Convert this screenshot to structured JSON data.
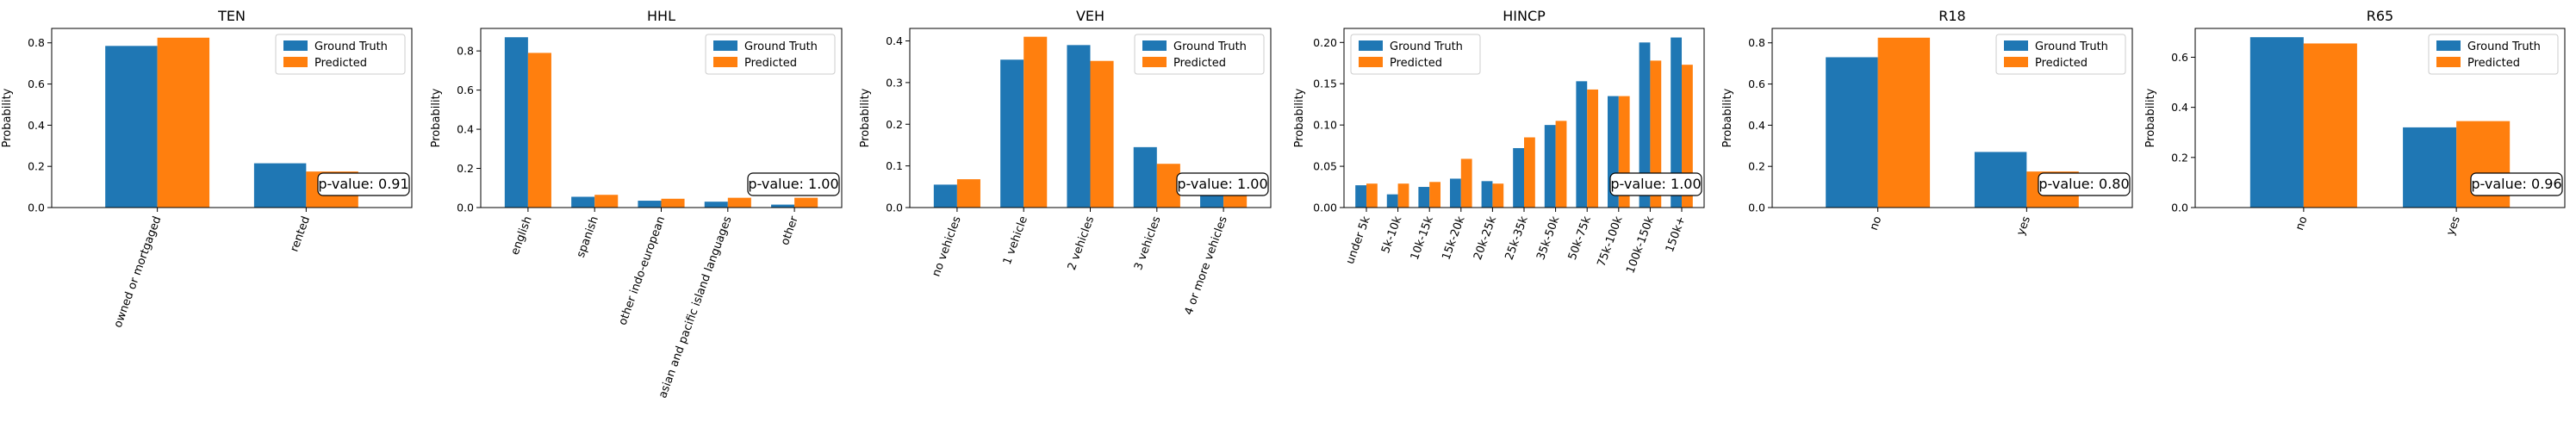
{
  "legend_labels": [
    "Ground Truth",
    "Predicted"
  ],
  "colors": {
    "ground_truth": "#1f77b4",
    "predicted": "#ff7f0e"
  },
  "chart_data": [
    {
      "type": "bar",
      "title": "TEN",
      "ylabel": "Probability",
      "categories": [
        "owned or mortgaged",
        "rented"
      ],
      "series": [
        {
          "name": "Ground Truth",
          "values": [
            0.785,
            0.215
          ]
        },
        {
          "name": "Predicted",
          "values": [
            0.825,
            0.175
          ]
        }
      ],
      "ylim": [
        0,
        0.87
      ],
      "yticks": [
        0.0,
        0.2,
        0.4,
        0.6,
        0.8
      ],
      "ytick_labels": [
        "0.0",
        "0.2",
        "0.4",
        "0.6",
        "0.8"
      ],
      "legend": "top-right",
      "annotation": "p-value: 0.91"
    },
    {
      "type": "bar",
      "title": "HHL",
      "ylabel": "Probability",
      "categories": [
        "english",
        "spanish",
        "other indo-european",
        "asian and pacific island languages",
        "other"
      ],
      "series": [
        {
          "name": "Ground Truth",
          "values": [
            0.87,
            0.055,
            0.035,
            0.03,
            0.015
          ]
        },
        {
          "name": "Predicted",
          "values": [
            0.79,
            0.065,
            0.045,
            0.05,
            0.05
          ]
        }
      ],
      "ylim": [
        0,
        0.915
      ],
      "yticks": [
        0.0,
        0.2,
        0.4,
        0.6,
        0.8
      ],
      "ytick_labels": [
        "0.0",
        "0.2",
        "0.4",
        "0.6",
        "0.8"
      ],
      "legend": "top-right",
      "annotation": "p-value: 1.00"
    },
    {
      "type": "bar",
      "title": "VEH",
      "ylabel": "Probability",
      "categories": [
        "no vehicles",
        "1 vehicle",
        "2 vehicles",
        "3 vehicles",
        "4 or more vehicles"
      ],
      "series": [
        {
          "name": "Ground Truth",
          "values": [
            0.055,
            0.355,
            0.39,
            0.145,
            0.06
          ]
        },
        {
          "name": "Predicted",
          "values": [
            0.068,
            0.41,
            0.352,
            0.105,
            0.06
          ]
        }
      ],
      "ylim": [
        0,
        0.43
      ],
      "yticks": [
        0.0,
        0.1,
        0.2,
        0.3,
        0.4
      ],
      "ytick_labels": [
        "0.0",
        "0.1",
        "0.2",
        "0.3",
        "0.4"
      ],
      "legend": "top-right",
      "annotation": "p-value: 1.00"
    },
    {
      "type": "bar",
      "title": "HINCP",
      "ylabel": "Probability",
      "categories": [
        "under 5k",
        "5k-10k",
        "10k-15k",
        "15k-20k",
        "20k-25k",
        "25k-35k",
        "35k-50k",
        "50k-75k",
        "75k-100k",
        "100k-150k",
        "150k+"
      ],
      "series": [
        {
          "name": "Ground Truth",
          "values": [
            0.027,
            0.016,
            0.025,
            0.035,
            0.032,
            0.072,
            0.1,
            0.153,
            0.135,
            0.2,
            0.206
          ]
        },
        {
          "name": "Predicted",
          "values": [
            0.029,
            0.029,
            0.031,
            0.059,
            0.029,
            0.085,
            0.105,
            0.143,
            0.135,
            0.178,
            0.173
          ]
        }
      ],
      "ylim": [
        0,
        0.217
      ],
      "yticks": [
        0.0,
        0.05,
        0.1,
        0.15,
        0.2
      ],
      "ytick_labels": [
        "0.00",
        "0.05",
        "0.10",
        "0.15",
        "0.20"
      ],
      "legend": "top-left",
      "annotation": "p-value: 1.00"
    },
    {
      "type": "bar",
      "title": "R18",
      "ylabel": "Probability",
      "categories": [
        "no",
        "yes"
      ],
      "series": [
        {
          "name": "Ground Truth",
          "values": [
            0.73,
            0.27
          ]
        },
        {
          "name": "Predicted",
          "values": [
            0.825,
            0.175
          ]
        }
      ],
      "ylim": [
        0,
        0.87
      ],
      "yticks": [
        0.0,
        0.2,
        0.4,
        0.6,
        0.8
      ],
      "ytick_labels": [
        "0.0",
        "0.2",
        "0.4",
        "0.6",
        "0.8"
      ],
      "legend": "top-right",
      "annotation": "p-value: 0.80"
    },
    {
      "type": "bar",
      "title": "R65",
      "ylabel": "Probability",
      "categories": [
        "no",
        "yes"
      ],
      "series": [
        {
          "name": "Ground Truth",
          "values": [
            0.68,
            0.32
          ]
        },
        {
          "name": "Predicted",
          "values": [
            0.655,
            0.345
          ]
        }
      ],
      "ylim": [
        0,
        0.715
      ],
      "yticks": [
        0.0,
        0.2,
        0.4,
        0.6
      ],
      "ytick_labels": [
        "0.0",
        "0.2",
        "0.4",
        "0.6"
      ],
      "legend": "top-right",
      "annotation": "p-value: 0.96"
    }
  ]
}
